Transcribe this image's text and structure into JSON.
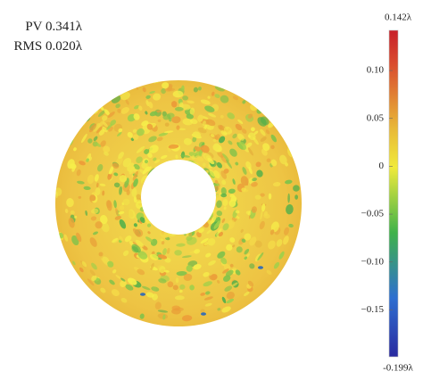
{
  "stats": {
    "pv": "PV 0.341λ",
    "rms": "RMS 0.020λ"
  },
  "chart_data": {
    "type": "heatmap",
    "title": "",
    "shape": "annulus",
    "colormap": [
      "#2a2aa0",
      "#2e6fd0",
      "#3fb24a",
      "#f0ea3a",
      "#e8b838",
      "#d94a2e",
      "#c8202a"
    ],
    "scale": {
      "min": -0.199,
      "max": 0.142,
      "min_label": "-0.199λ",
      "max_label": "0.142λ",
      "ticks": [
        {
          "value": 0.1,
          "label": "0.10"
        },
        {
          "value": 0.05,
          "label": "0.05"
        },
        {
          "value": 0,
          "label": "0"
        },
        {
          "value": -0.05,
          "label": "−0.05"
        },
        {
          "value": -0.1,
          "label": "−0.10"
        },
        {
          "value": -0.15,
          "label": "−0.15"
        }
      ]
    }
  }
}
